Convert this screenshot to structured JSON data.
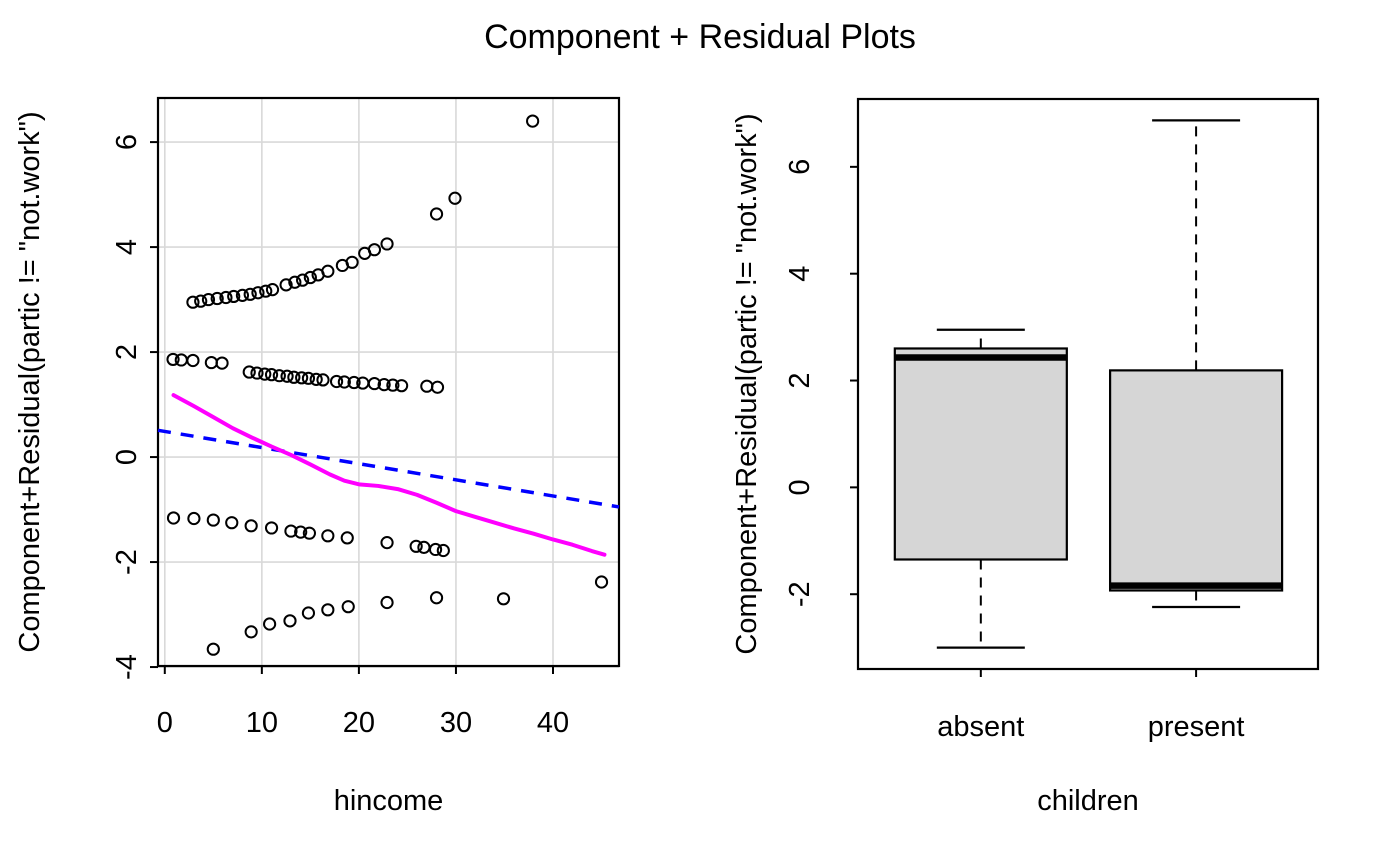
{
  "figure": {
    "title": "Component + Residual Plots",
    "background": "#ffffff",
    "text_color": "#000000"
  },
  "chart_data": [
    {
      "type": "scatter",
      "panel": "left",
      "title": "",
      "xlabel": "hincome",
      "ylabel": "Component+Residual(partic != \"not.work\")",
      "xlim": [
        -0.7,
        46.8
      ],
      "ylim": [
        -3.98,
        6.84
      ],
      "xticks": [
        0,
        10,
        20,
        30,
        40
      ],
      "yticks": [
        -4,
        -2,
        0,
        2,
        4,
        6
      ],
      "grid": true,
      "grid_color": "#d9d9d9",
      "point_color": "#000000",
      "points": [
        [
          2.9,
          2.95
        ],
        [
          3.7,
          2.97
        ],
        [
          4.5,
          3.0
        ],
        [
          5.4,
          3.02
        ],
        [
          6.3,
          3.04
        ],
        [
          7.1,
          3.06
        ],
        [
          8.0,
          3.08
        ],
        [
          8.8,
          3.1
        ],
        [
          9.6,
          3.13
        ],
        [
          10.4,
          3.16
        ],
        [
          11.1,
          3.19
        ],
        [
          12.5,
          3.28
        ],
        [
          13.4,
          3.33
        ],
        [
          14.2,
          3.37
        ],
        [
          15.0,
          3.42
        ],
        [
          15.8,
          3.47
        ],
        [
          16.8,
          3.54
        ],
        [
          18.3,
          3.65
        ],
        [
          19.3,
          3.71
        ],
        [
          20.6,
          3.88
        ],
        [
          21.6,
          3.95
        ],
        [
          22.9,
          4.06
        ],
        [
          28.0,
          4.63
        ],
        [
          29.9,
          4.93
        ],
        [
          37.9,
          6.4
        ],
        [
          0.85,
          1.86
        ],
        [
          1.7,
          1.85
        ],
        [
          2.9,
          1.84
        ],
        [
          4.8,
          1.8
        ],
        [
          5.9,
          1.79
        ],
        [
          8.7,
          1.62
        ],
        [
          9.5,
          1.6
        ],
        [
          10.3,
          1.58
        ],
        [
          11.0,
          1.57
        ],
        [
          11.8,
          1.55
        ],
        [
          12.6,
          1.54
        ],
        [
          13.3,
          1.52
        ],
        [
          14.1,
          1.51
        ],
        [
          14.8,
          1.5
        ],
        [
          15.6,
          1.48
        ],
        [
          16.3,
          1.47
        ],
        [
          17.7,
          1.44
        ],
        [
          18.5,
          1.43
        ],
        [
          19.5,
          1.42
        ],
        [
          20.4,
          1.41
        ],
        [
          21.6,
          1.4
        ],
        [
          22.6,
          1.38
        ],
        [
          23.5,
          1.37
        ],
        [
          24.4,
          1.36
        ],
        [
          27.0,
          1.35
        ],
        [
          28.1,
          1.33
        ],
        [
          0.9,
          -1.16
        ],
        [
          3.0,
          -1.17
        ],
        [
          5.0,
          -1.2
        ],
        [
          6.9,
          -1.25
        ],
        [
          8.9,
          -1.31
        ],
        [
          11.0,
          -1.35
        ],
        [
          13.0,
          -1.41
        ],
        [
          14.0,
          -1.43
        ],
        [
          14.9,
          -1.45
        ],
        [
          16.8,
          -1.5
        ],
        [
          18.8,
          -1.54
        ],
        [
          22.9,
          -1.63
        ],
        [
          25.9,
          -1.7
        ],
        [
          26.7,
          -1.72
        ],
        [
          27.9,
          -1.76
        ],
        [
          28.7,
          -1.78
        ],
        [
          5.0,
          -3.66
        ],
        [
          8.9,
          -3.33
        ],
        [
          10.8,
          -3.18
        ],
        [
          12.9,
          -3.12
        ],
        [
          14.8,
          -2.97
        ],
        [
          16.8,
          -2.91
        ],
        [
          18.9,
          -2.85
        ],
        [
          22.9,
          -2.77
        ],
        [
          28.0,
          -2.68
        ],
        [
          34.9,
          -2.7
        ],
        [
          45.0,
          -2.38
        ]
      ],
      "loess_line": {
        "label": "loess smooth",
        "color": "#ff00ff",
        "width": 4,
        "points": [
          [
            0.9,
            1.18
          ],
          [
            3,
            0.97
          ],
          [
            5,
            0.76
          ],
          [
            7,
            0.55
          ],
          [
            9,
            0.37
          ],
          [
            11,
            0.2
          ],
          [
            13,
            0.04
          ],
          [
            15,
            -0.14
          ],
          [
            17,
            -0.33
          ],
          [
            18.5,
            -0.45
          ],
          [
            20,
            -0.52
          ],
          [
            22,
            -0.55
          ],
          [
            24,
            -0.61
          ],
          [
            26,
            -0.72
          ],
          [
            28,
            -0.87
          ],
          [
            30,
            -1.03
          ],
          [
            32,
            -1.14
          ],
          [
            34,
            -1.25
          ],
          [
            36,
            -1.36
          ],
          [
            38,
            -1.46
          ],
          [
            40,
            -1.57
          ],
          [
            42,
            -1.67
          ],
          [
            44,
            -1.79
          ],
          [
            45.3,
            -1.86
          ]
        ]
      },
      "component_line": {
        "label": "linear component",
        "color": "#0000ff",
        "width": 3.5,
        "dash": [
          13,
          10
        ],
        "points": [
          [
            -0.7,
            0.51
          ],
          [
            46.8,
            -0.95
          ]
        ]
      }
    },
    {
      "type": "boxplot",
      "panel": "right",
      "title": "",
      "xlabel": "children",
      "ylabel": "Component+Residual(partic != \"not.work\")",
      "ylim": [
        -3.4,
        7.27
      ],
      "yticks": [
        -2,
        0,
        2,
        4,
        6
      ],
      "grid": false,
      "box_fill": "#d6d6d6",
      "categories": [
        "absent",
        "present"
      ],
      "boxes": [
        {
          "label": "absent",
          "lower_whisker": -3.0,
          "q1": -1.35,
          "median": 2.43,
          "q3": 2.6,
          "upper_whisker": 2.95
        },
        {
          "label": "present",
          "lower_whisker": -2.24,
          "q1": -1.93,
          "median": -1.84,
          "q3": 2.19,
          "upper_whisker": 6.87
        }
      ]
    }
  ]
}
